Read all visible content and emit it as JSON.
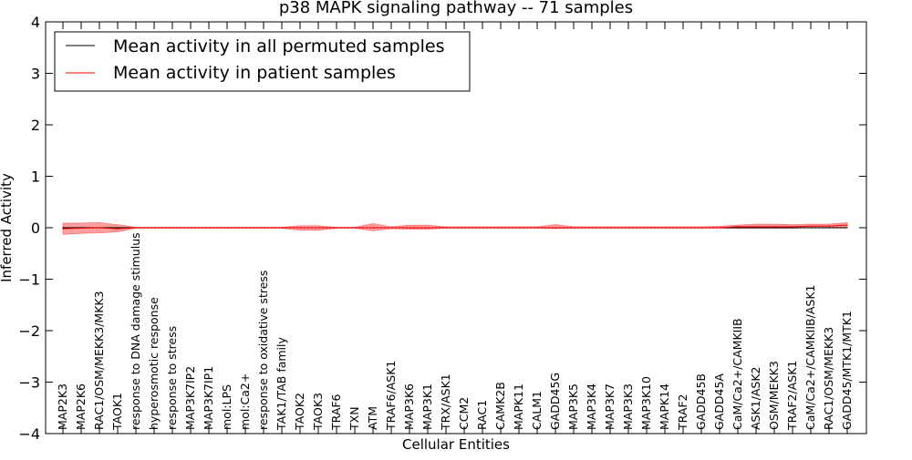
{
  "chart_data": {
    "type": "line",
    "title": "p38 MAPK signaling pathway -- 71 samples",
    "xlabel": "Cellular Entities",
    "ylabel": "Inferred Activity",
    "ylim": [
      -4,
      4
    ],
    "yticks": [
      -4,
      -3,
      -2,
      -1,
      0,
      1,
      2,
      3,
      4
    ],
    "ytick_labels": [
      "−4",
      "−3",
      "−2",
      "−1",
      "0",
      "1",
      "2",
      "3",
      "4"
    ],
    "categories": [
      "MAP2K3",
      "MAP2K6",
      "RAC1/OSM/MEKK3/MKK3",
      "TAOK1",
      "response to DNA damage stimulus",
      "hyperosmotic response",
      "response to stress",
      "MAP3K7IP2",
      "MAP3K7IP1",
      "mol:LPS",
      "mol:Ca2+",
      "response to oxidative stress",
      "TAK1/TAB family",
      "TAOK2",
      "TAOK3",
      "TRAF6",
      "TXN",
      "ATM",
      "TRAF6/ASK1",
      "MAP3K6",
      "MAP3K1",
      "TRX/ASK1",
      "CCM2",
      "RAC1",
      "CAMK2B",
      "MAPK11",
      "CALM1",
      "GADD45G",
      "MAP3K5",
      "MAP3K4",
      "MAP3K7",
      "MAP3K3",
      "MAP3K10",
      "MAPK14",
      "TRAF2",
      "GADD45B",
      "GADD45A",
      "CaM/Ca2+/CAMKIIB",
      "ASK1/ASK2",
      "OSM/MEKK3",
      "TRAF2/ASK1",
      "CaM/Ca2+/CAMKIIB/ASK1",
      "RAC1/OSM/MEKK3",
      "GADD45/MTK1/MTK1"
    ],
    "series": [
      {
        "name": "Mean activity in all permuted samples",
        "color": "#000000",
        "style": "solid",
        "values": [
          0,
          0,
          0,
          0,
          0,
          0,
          0,
          0,
          0,
          0,
          0,
          0,
          0,
          0,
          0,
          0,
          0,
          0,
          0,
          0,
          0,
          0,
          0,
          0,
          0,
          0,
          0,
          0,
          0,
          0,
          0,
          0,
          0,
          0,
          0,
          0,
          0,
          0,
          0,
          0,
          0,
          0,
          0,
          0
        ]
      },
      {
        "name": "Mean activity in patient samples",
        "color": "#ff0000",
        "style": "solid",
        "values": [
          -0.02,
          -0.01,
          0.0,
          -0.02,
          0.0,
          0.0,
          0.0,
          0.0,
          0.0,
          0.0,
          0.0,
          0.0,
          0.0,
          0.0,
          0.0,
          0.0,
          0.0,
          0.0,
          0.0,
          0.0,
          0.0,
          0.0,
          0.0,
          0.0,
          0.0,
          0.0,
          0.0,
          0.0,
          0.0,
          0.0,
          0.0,
          0.0,
          0.0,
          0.0,
          0.0,
          0.0,
          0.0,
          0.02,
          0.02,
          0.02,
          0.02,
          0.03,
          0.03,
          0.05
        ],
        "band_upper": [
          0.09,
          0.09,
          0.1,
          0.06,
          0.01,
          0.01,
          0.01,
          0.01,
          0.01,
          0.01,
          0.01,
          0.01,
          0.01,
          0.04,
          0.04,
          0.01,
          0.01,
          0.08,
          0.02,
          0.05,
          0.05,
          0.02,
          0.02,
          0.02,
          0.02,
          0.02,
          0.02,
          0.06,
          0.02,
          0.02,
          0.02,
          0.02,
          0.02,
          0.02,
          0.02,
          0.02,
          0.03,
          0.05,
          0.07,
          0.07,
          0.06,
          0.07,
          0.07,
          0.1
        ],
        "band_lower": [
          -0.13,
          -0.11,
          -0.1,
          -0.08,
          -0.01,
          -0.01,
          -0.01,
          -0.01,
          -0.01,
          -0.01,
          -0.01,
          -0.01,
          -0.01,
          -0.05,
          -0.05,
          -0.01,
          -0.01,
          -0.06,
          -0.02,
          -0.03,
          -0.03,
          -0.01,
          -0.01,
          -0.01,
          -0.01,
          -0.01,
          -0.01,
          -0.02,
          -0.01,
          -0.01,
          -0.01,
          -0.01,
          -0.01,
          -0.01,
          -0.01,
          -0.01,
          -0.01,
          -0.01,
          -0.01,
          -0.01,
          -0.01,
          0.0,
          0.0,
          0.0
        ]
      }
    ],
    "reference_line": {
      "value": 0,
      "style": "dotted",
      "color": "#000000"
    },
    "legend": {
      "position": "top-left",
      "entries": [
        "Mean activity in all permuted samples",
        "Mean activity in patient samples"
      ]
    },
    "grid": false
  }
}
